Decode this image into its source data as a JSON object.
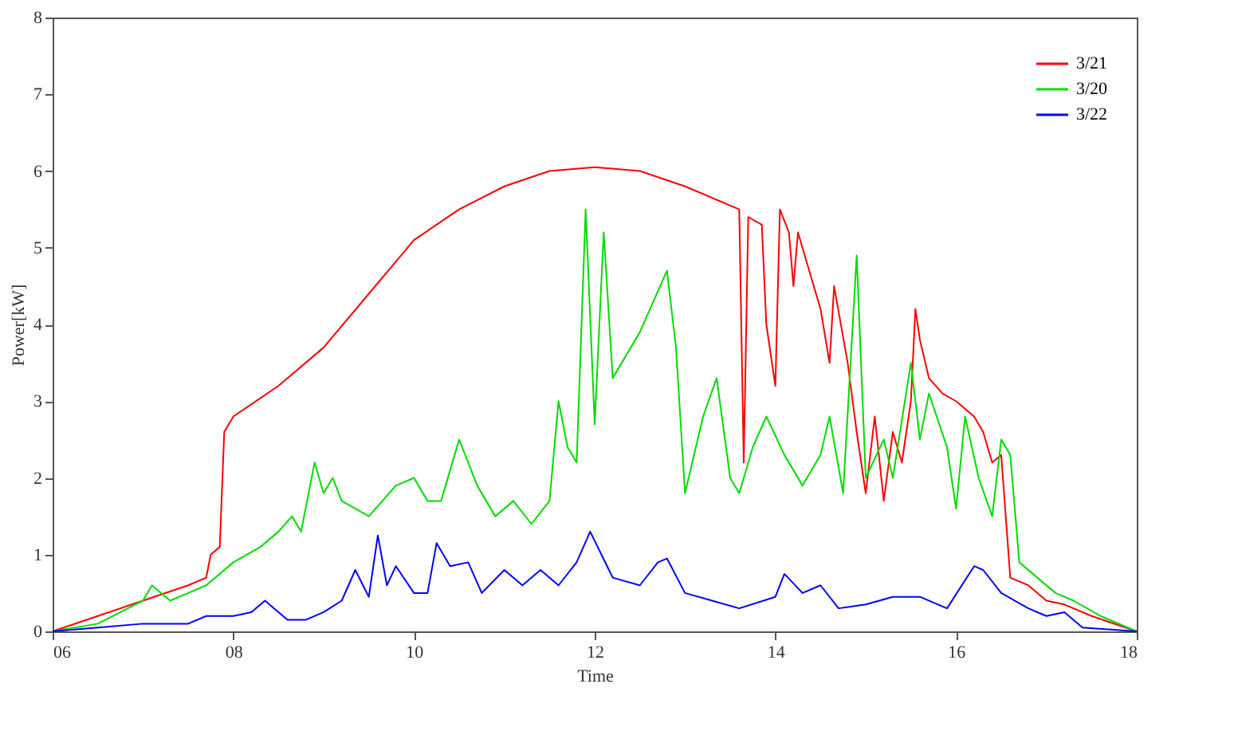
{
  "chart_data": {
    "type": "line",
    "xlabel": "Time",
    "ylabel": "Power[kW]",
    "xlim": [
      6,
      18
    ],
    "ylim": [
      0,
      8
    ],
    "xticks": [
      {
        "value": 6,
        "label": "06"
      },
      {
        "value": 8,
        "label": "08"
      },
      10,
      12,
      14,
      16,
      18
    ],
    "yticks": [
      0,
      1,
      2,
      3,
      4,
      5,
      6,
      7,
      8
    ],
    "grid": false,
    "legend": "top right",
    "marker": "none",
    "line_style": "solid",
    "series": [
      {
        "name": "3/21",
        "color": "#ff0000",
        "x": [
          6.0,
          6.5,
          7.0,
          7.5,
          7.7,
          7.75,
          7.85,
          7.9,
          8.0,
          8.5,
          9.0,
          9.5,
          10.0,
          10.5,
          11.0,
          11.5,
          12.0,
          12.5,
          13.0,
          13.5,
          13.6,
          13.65,
          13.7,
          13.85,
          13.9,
          14.0,
          14.05,
          14.15,
          14.2,
          14.25,
          14.4,
          14.5,
          14.6,
          14.65,
          14.8,
          14.9,
          15.0,
          15.1,
          15.2,
          15.3,
          15.4,
          15.5,
          15.55,
          15.6,
          15.7,
          15.85,
          16.0,
          16.2,
          16.3,
          16.4,
          16.5,
          16.6,
          16.8,
          17.0,
          17.2,
          17.5,
          18.0
        ],
        "values": [
          0,
          0.2,
          0.4,
          0.6,
          0.7,
          1.0,
          1.1,
          2.6,
          2.8,
          3.2,
          3.7,
          4.4,
          5.1,
          5.5,
          5.8,
          6.0,
          6.05,
          6.0,
          5.8,
          5.55,
          5.5,
          2.2,
          5.4,
          5.3,
          4.0,
          3.2,
          5.5,
          5.2,
          4.5,
          5.2,
          4.6,
          4.2,
          3.5,
          4.5,
          3.5,
          2.6,
          1.8,
          2.8,
          1.7,
          2.6,
          2.2,
          3.0,
          4.2,
          3.8,
          3.3,
          3.1,
          3.0,
          2.8,
          2.6,
          2.2,
          2.3,
          0.7,
          0.6,
          0.4,
          0.35,
          0.2,
          0
        ]
      },
      {
        "name": "3/20",
        "color": "#00dd00",
        "x": [
          6.0,
          6.5,
          7.0,
          7.1,
          7.3,
          7.5,
          7.7,
          8.0,
          8.3,
          8.5,
          8.65,
          8.75,
          8.9,
          9.0,
          9.1,
          9.2,
          9.5,
          9.8,
          10.0,
          10.15,
          10.3,
          10.5,
          10.7,
          10.9,
          11.1,
          11.3,
          11.5,
          11.6,
          11.7,
          11.8,
          11.9,
          12.0,
          12.1,
          12.2,
          12.5,
          12.8,
          12.9,
          13.0,
          13.2,
          13.35,
          13.5,
          13.6,
          13.75,
          13.9,
          14.1,
          14.3,
          14.5,
          14.6,
          14.75,
          14.9,
          15.0,
          15.2,
          15.3,
          15.5,
          15.6,
          15.7,
          15.9,
          16.0,
          16.1,
          16.25,
          16.4,
          16.5,
          16.6,
          16.7,
          16.9,
          17.1,
          17.3,
          17.6,
          18.0
        ],
        "values": [
          0,
          0.1,
          0.4,
          0.6,
          0.4,
          0.5,
          0.6,
          0.9,
          1.1,
          1.3,
          1.5,
          1.3,
          2.2,
          1.8,
          2.0,
          1.7,
          1.5,
          1.9,
          2.0,
          1.7,
          1.7,
          2.5,
          1.9,
          1.5,
          1.7,
          1.4,
          1.7,
          3.0,
          2.4,
          2.2,
          5.5,
          2.7,
          5.2,
          3.3,
          3.9,
          4.7,
          3.7,
          1.8,
          2.8,
          3.3,
          2.0,
          1.8,
          2.4,
          2.8,
          2.3,
          1.9,
          2.3,
          2.8,
          1.8,
          4.9,
          2.0,
          2.5,
          2.0,
          3.5,
          2.5,
          3.1,
          2.4,
          1.6,
          2.8,
          2.0,
          1.5,
          2.5,
          2.3,
          0.9,
          0.7,
          0.5,
          0.4,
          0.2,
          0
        ]
      },
      {
        "name": "3/22",
        "color": "#0000ff",
        "x": [
          6.0,
          6.5,
          7.0,
          7.5,
          7.7,
          8.0,
          8.2,
          8.35,
          8.6,
          8.8,
          9.0,
          9.2,
          9.35,
          9.5,
          9.6,
          9.7,
          9.8,
          10.0,
          10.15,
          10.25,
          10.4,
          10.6,
          10.75,
          11.0,
          11.2,
          11.4,
          11.6,
          11.8,
          11.95,
          12.2,
          12.5,
          12.7,
          12.8,
          13.0,
          13.3,
          13.6,
          14.0,
          14.1,
          14.3,
          14.5,
          14.7,
          15.0,
          15.3,
          15.6,
          15.9,
          16.2,
          16.3,
          16.5,
          16.8,
          17.0,
          17.2,
          17.4,
          18.0
        ],
        "values": [
          0,
          0.05,
          0.1,
          0.1,
          0.2,
          0.2,
          0.25,
          0.4,
          0.15,
          0.15,
          0.25,
          0.4,
          0.8,
          0.45,
          1.25,
          0.6,
          0.85,
          0.5,
          0.5,
          1.15,
          0.85,
          0.9,
          0.5,
          0.8,
          0.6,
          0.8,
          0.6,
          0.9,
          1.3,
          0.7,
          0.6,
          0.9,
          0.95,
          0.5,
          0.4,
          0.3,
          0.45,
          0.75,
          0.5,
          0.6,
          0.3,
          0.35,
          0.45,
          0.45,
          0.3,
          0.85,
          0.8,
          0.5,
          0.3,
          0.2,
          0.25,
          0.05,
          0
        ]
      }
    ]
  }
}
